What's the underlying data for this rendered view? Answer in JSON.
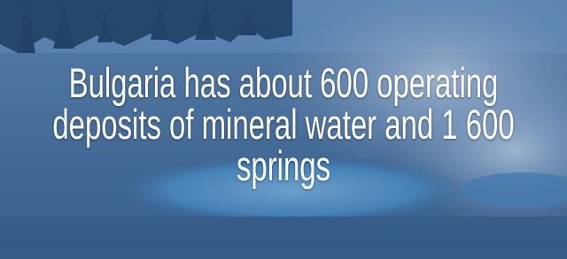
{
  "headline": {
    "lines": [
      "Bulgaria has about 600 operating",
      "deposits of mineral water and 1 600",
      "springs"
    ]
  }
}
